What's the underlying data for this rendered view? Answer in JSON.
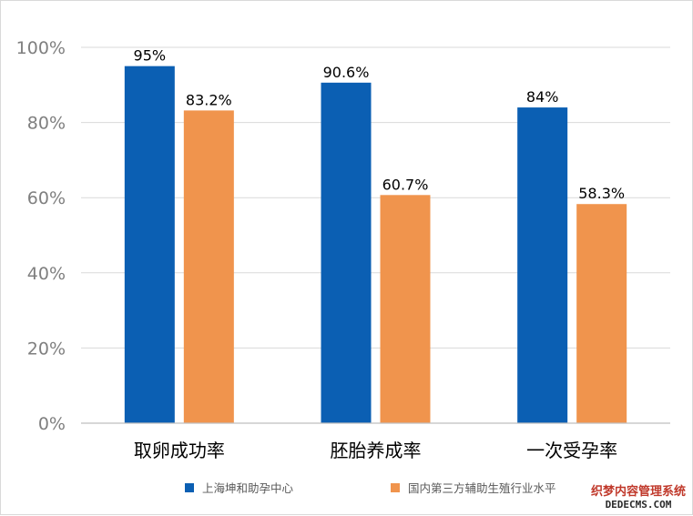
{
  "chart_data": {
    "type": "bar",
    "categories": [
      "取卵成功率",
      "胚胎养成率",
      "一次受孕率"
    ],
    "series": [
      {
        "name": "上海坤和助孕中心",
        "values": [
          95,
          90.6,
          84
        ],
        "labels": [
          "95%",
          "90.6%",
          "84%"
        ],
        "color": "#0b5fb3"
      },
      {
        "name": "国内第三方辅助生殖行业水平",
        "values": [
          83.2,
          60.7,
          58.3
        ],
        "labels": [
          "83.2%",
          "60.7%",
          "58.3%"
        ],
        "color": "#f0944d"
      }
    ],
    "y_ticks": [
      "0%",
      "20%",
      "40%",
      "60%",
      "80%",
      "100%"
    ],
    "ylim": [
      0,
      100
    ],
    "grid": true,
    "legend_position": "bottom"
  },
  "watermark": {
    "line1": "织梦内容管理系统",
    "line2": "DEDECMS.COM"
  }
}
